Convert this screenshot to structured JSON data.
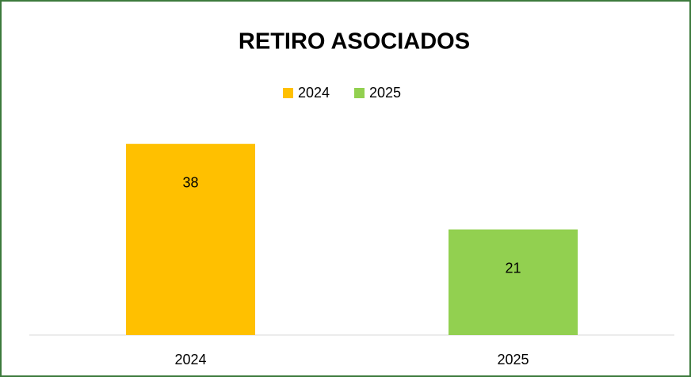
{
  "chart_data": {
    "type": "bar",
    "title": "RETIRO ASOCIADOS",
    "categories": [
      "2024",
      "2025"
    ],
    "series": [
      {
        "name": "2024",
        "color": "#ffc000",
        "values": [
          38,
          null
        ]
      },
      {
        "name": "2025",
        "color": "#92d050",
        "values": [
          null,
          21
        ]
      }
    ],
    "ylim": [
      0,
      40
    ],
    "legend": "top",
    "data_labels": true
  }
}
